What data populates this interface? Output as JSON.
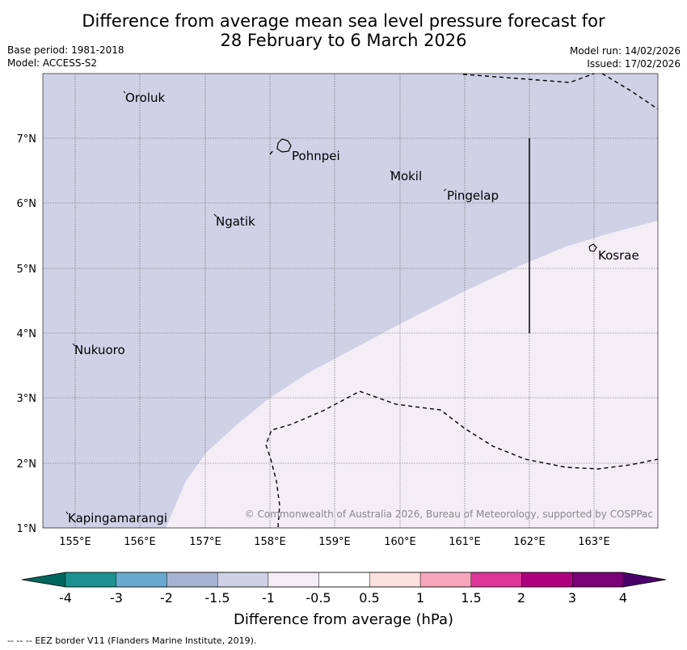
{
  "header": {
    "title_line1": "Difference from average mean sea level pressure forecast for",
    "title_line2": "28 February to 6 March 2026",
    "base_period": "Base period: 1981-2018",
    "model": "Model: ACCESS-S2",
    "model_run": "Model run: 14/02/2026",
    "issued": "Issued: 17/02/2026"
  },
  "map": {
    "lon_ticks": [
      "155°E",
      "156°E",
      "157°E",
      "158°E",
      "159°E",
      "160°E",
      "161°E",
      "162°E",
      "163°E"
    ],
    "lat_ticks": [
      "7°N",
      "6°N",
      "5°N",
      "4°N",
      "3°N",
      "2°N",
      "1°N"
    ],
    "places": [
      {
        "name": "Oroluk"
      },
      {
        "name": "Pohnpei"
      },
      {
        "name": "Mokil"
      },
      {
        "name": "Pingelap"
      },
      {
        "name": "Ngatik"
      },
      {
        "name": "Kosrae"
      },
      {
        "name": "Nukuoro"
      },
      {
        "name": "Kapingamarangi"
      }
    ],
    "copyright": "© Commonwealth of Australia 2026, Bureau of Meteorology, supported by COSPPac",
    "fill_colors": {
      "minus_1_5_to_minus_1": "#d0d1e6",
      "minus_1_to_minus_0_5": "#f3eef6"
    }
  },
  "colorbar": {
    "label": "Difference from average (hPa)",
    "ticks": [
      "-4",
      "-3",
      "-2",
      "-1.5",
      "-1",
      "-0.5",
      "0.5",
      "1",
      "1.5",
      "2",
      "3",
      "4"
    ],
    "colors": [
      "#1b9191",
      "#67a9cf",
      "#a6b3d0",
      "#d0d1e6",
      "#f3eef6",
      "#ffffff",
      "#fde0e0",
      "#f7a5bd",
      "#dd3497",
      "#ae017e",
      "#7a0177"
    ],
    "under_color": "#01665e",
    "over_color": "#49006a"
  },
  "footer": {
    "legend_symbol": "--  --  --",
    "eez_text": "EEZ border V11 (Flanders Marine Institute, 2019)."
  }
}
